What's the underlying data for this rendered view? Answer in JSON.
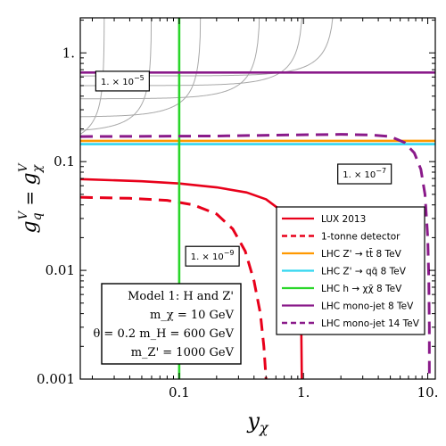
{
  "chart_data": {
    "type": "line",
    "x_scale": "log",
    "y_scale": "log",
    "xlim": [
      0.016,
      11.5
    ],
    "ylim": [
      0.001,
      2.1
    ],
    "xlabel": "y_χ",
    "ylabel": "g_q^V = g_χ^V",
    "x_ticks": [
      {
        "value": 0.1,
        "label": "0.1"
      },
      {
        "value": 1,
        "label": "1."
      },
      {
        "value": 10,
        "label": "10."
      }
    ],
    "y_ticks": [
      {
        "value": 0.001,
        "label": "0.001"
      },
      {
        "value": 0.01,
        "label": "0.01"
      },
      {
        "value": 0.1,
        "label": "0.1"
      },
      {
        "value": 1,
        "label": "1."
      }
    ],
    "contour_labels": [
      {
        "base": "1. × 10",
        "exp": "−5",
        "x": 0.035,
        "y": 0.55
      },
      {
        "base": "1. × 10",
        "exp": "−7",
        "x": 3.1,
        "y": 0.077
      },
      {
        "base": "1. × 10",
        "exp": "−9",
        "x": 0.185,
        "y": 0.0135
      }
    ],
    "background_contours": [
      {
        "A": 0.003
      },
      {
        "A": 0.009
      },
      {
        "A": 0.025
      },
      {
        "A": 0.06
      },
      {
        "A": 0.15
      },
      {
        "A": 0.45
      },
      {
        "A": 1.0
      },
      {
        "A": 1.8
      }
    ],
    "series": [
      {
        "name": "LUX 2013",
        "color": "#e8001a",
        "style": "solid",
        "points": [
          [
            0.016,
            0.069
          ],
          [
            0.05,
            0.066
          ],
          [
            0.1,
            0.063
          ],
          [
            0.2,
            0.058
          ],
          [
            0.35,
            0.052
          ],
          [
            0.5,
            0.045
          ],
          [
            0.65,
            0.036
          ],
          [
            0.78,
            0.026
          ],
          [
            0.87,
            0.016
          ],
          [
            0.93,
            0.007
          ],
          [
            0.96,
            0.003
          ],
          [
            0.97,
            0.001
          ]
        ]
      },
      {
        "name": "1-tonne detector",
        "color": "#e8001a",
        "style": "dashed",
        "points": [
          [
            0.016,
            0.047
          ],
          [
            0.04,
            0.046
          ],
          [
            0.08,
            0.044
          ],
          [
            0.13,
            0.04
          ],
          [
            0.2,
            0.033
          ],
          [
            0.27,
            0.024
          ],
          [
            0.34,
            0.015
          ],
          [
            0.4,
            0.008
          ],
          [
            0.45,
            0.004
          ],
          [
            0.48,
            0.002
          ],
          [
            0.5,
            0.001
          ]
        ]
      },
      {
        "name": "LHC Z' → tt̄ 8 TeV",
        "color": "#ff9900",
        "style": "solid",
        "points": [
          [
            0.016,
            0.155
          ],
          [
            11.5,
            0.155
          ]
        ]
      },
      {
        "name": "LHC Z' → qq̄ 8 TeV",
        "color": "#33d6f0",
        "style": "solid",
        "points": [
          [
            0.016,
            0.145
          ],
          [
            11.5,
            0.145
          ]
        ]
      },
      {
        "name": "LHC h → χχ̄ 8 TeV",
        "color": "#2ad62a",
        "style": "solid",
        "points": [
          [
            0.1,
            0.001
          ],
          [
            0.1,
            2.1
          ]
        ]
      },
      {
        "name": "LHC mono-jet 8 TeV",
        "color": "#8a1a8a",
        "style": "solid",
        "points": [
          [
            0.016,
            0.66
          ],
          [
            11.5,
            0.66
          ]
        ]
      },
      {
        "name": "LHC mono-jet 14 TeV",
        "color": "#8a1a8a",
        "style": "dashed",
        "points": [
          [
            0.016,
            0.17
          ],
          [
            0.2,
            0.172
          ],
          [
            0.8,
            0.176
          ],
          [
            2,
            0.178
          ],
          [
            3.5,
            0.176
          ],
          [
            5,
            0.17
          ],
          [
            6.5,
            0.15
          ],
          [
            7.8,
            0.12
          ],
          [
            8.8,
            0.085
          ],
          [
            9.5,
            0.05
          ],
          [
            10,
            0.02
          ],
          [
            10.2,
            0.008
          ],
          [
            10.3,
            0.003
          ],
          [
            10.3,
            0.001
          ]
        ]
      }
    ],
    "legend": {
      "placement": "right",
      "entries": [
        {
          "label": "LUX 2013",
          "color": "#e8001a",
          "style": "solid"
        },
        {
          "label": "1-tonne detector",
          "color": "#e8001a",
          "style": "dashed"
        },
        {
          "label": "LHC Z' → tt̄  8 TeV",
          "color": "#ff9900",
          "style": "solid"
        },
        {
          "label": "LHC Z' → qq̄  8 TeV",
          "color": "#33d6f0",
          "style": "solid"
        },
        {
          "label": "LHC h → χχ̄  8 TeV",
          "color": "#2ad62a",
          "style": "solid"
        },
        {
          "label": "LHC mono-jet 8 TeV",
          "color": "#8a1a8a",
          "style": "solid"
        },
        {
          "label": "LHC mono-jet 14 TeV",
          "color": "#8a1a8a",
          "style": "dashed"
        }
      ]
    },
    "info_box": {
      "lines": [
        "Model 1: H and Z'",
        "m_χ = 10 GeV",
        "θ = 0.2  m_H = 600 GeV",
        "m_Z' = 1000 GeV"
      ]
    }
  }
}
